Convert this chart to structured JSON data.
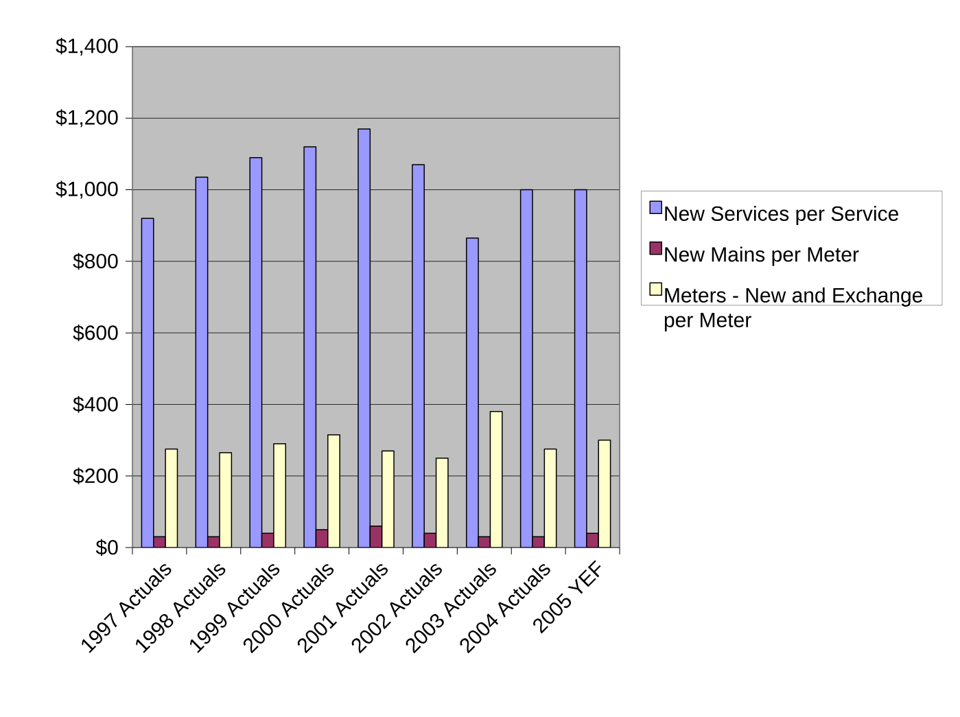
{
  "chart_data": {
    "type": "bar",
    "categories": [
      "1997 Actuals",
      "1998 Actuals",
      "1999 Actuals",
      "2000 Actuals",
      "2001 Actuals",
      "2002 Actuals",
      "2003 Actuals",
      "2004 Actuals",
      "2005 YEF"
    ],
    "series": [
      {
        "name": "New Services per Service",
        "color": "#9999ff",
        "values": [
          920,
          1035,
          1090,
          1120,
          1170,
          1070,
          865,
          1000,
          1000
        ]
      },
      {
        "name": "New Mains per Meter",
        "color": "#993366",
        "values": [
          30,
          30,
          40,
          50,
          60,
          40,
          30,
          30,
          40
        ]
      },
      {
        "name": "Meters - New and Exchange per Meter",
        "color": "#ffffcc",
        "values": [
          275,
          265,
          290,
          315,
          270,
          250,
          380,
          275,
          300
        ]
      }
    ],
    "ylim": [
      0,
      1400
    ],
    "yticks": [
      {
        "value": 0,
        "label": "$0"
      },
      {
        "value": 200,
        "label": "$200"
      },
      {
        "value": 400,
        "label": "$400"
      },
      {
        "value": 600,
        "label": "$600"
      },
      {
        "value": 800,
        "label": "$800"
      },
      {
        "value": 1000,
        "label": "$1,000"
      },
      {
        "value": 1200,
        "label": "$1,200"
      },
      {
        "value": 1400,
        "label": "$1,400"
      }
    ],
    "grid": "y",
    "legend": "right"
  }
}
